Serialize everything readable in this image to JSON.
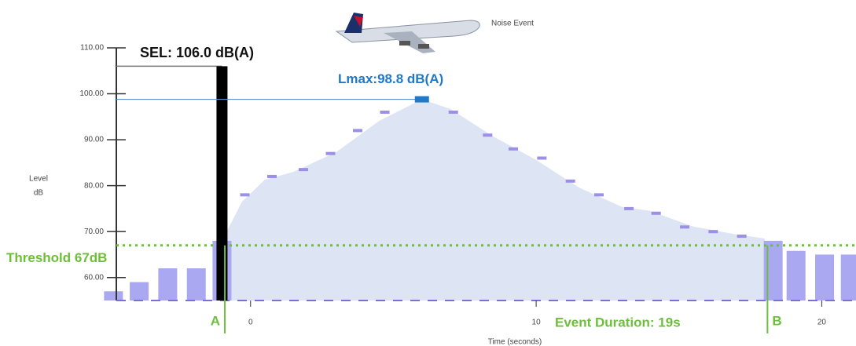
{
  "chart_data": {
    "type": "noise-event",
    "title": "Noise Event",
    "y_label": [
      "Level",
      "dB"
    ],
    "x_label": "Time (seconds)",
    "xlim": [
      -4.7,
      21.2
    ],
    "ylim": [
      55,
      110
    ],
    "xticks": [
      0,
      10,
      20
    ],
    "yticks": [
      {
        "value": 60,
        "label": "60.00"
      },
      {
        "value": 70,
        "label": "70.00"
      },
      {
        "value": 80,
        "label": "80.00"
      },
      {
        "value": 90,
        "label": "90.00"
      },
      {
        "value": 100,
        "label": "100.00"
      },
      {
        "value": 110,
        "label": "110.00"
      }
    ],
    "area": {
      "color": "#dde4f4",
      "x": [
        -1.0,
        -0.3,
        0.5,
        1.5,
        3,
        4.5,
        6,
        7,
        8.5,
        10,
        11.5,
        13,
        14,
        15.5,
        17,
        18
      ],
      "values": [
        68,
        76.5,
        81.3,
        83,
        87.3,
        94.1,
        98.8,
        96.7,
        90.7,
        85.6,
        79.6,
        75.4,
        74.5,
        71.1,
        69.4,
        68.5
      ]
    },
    "dashes": {
      "color": "#9b8fe6",
      "x": [
        -0.2,
        0.75,
        1.85,
        2.8,
        3.75,
        4.7,
        7.1,
        8.3,
        9.2,
        10.2,
        11.2,
        12.2,
        13.25,
        14.2,
        15.2,
        16.2,
        17.2
      ],
      "values": [
        78,
        82,
        83.5,
        87,
        92,
        96,
        96,
        91,
        88,
        86,
        81,
        78,
        75,
        74,
        71,
        70,
        69
      ]
    },
    "bars": {
      "color": "#a9a8f0",
      "x": [
        -4.8,
        -3.9,
        -2.9,
        -1.9,
        -1.0,
        18.3,
        19.1,
        20.1,
        21.0
      ],
      "values": [
        57,
        59,
        62,
        62,
        68,
        68,
        65.8,
        65,
        65
      ]
    },
    "sel": {
      "label": "SEL: 106.0 dB(A)",
      "value": 106,
      "x": -1.0
    },
    "lmax": {
      "label": "Lmax:98.8 dB(A)",
      "value": 98.8,
      "x": 6
    },
    "threshold": {
      "label": "Threshold 67dB",
      "value": 67
    },
    "markers": [
      {
        "label": "A",
        "x": -0.9
      },
      {
        "label": "B",
        "x": 18.1
      }
    ],
    "duration_label": "Event Duration: 19s"
  }
}
